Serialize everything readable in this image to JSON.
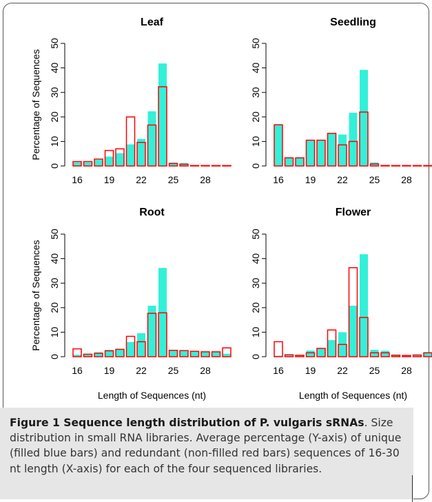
{
  "colors": {
    "unique_fill": "#33f0d8",
    "redundant_stroke": "#ff0000",
    "axis": "#000000"
  },
  "chart_data": [
    {
      "type": "bar",
      "title": "Leaf",
      "ylabel": "Percentage of Sequences",
      "xlabel": "",
      "x": [
        16,
        17,
        18,
        19,
        20,
        21,
        22,
        23,
        24,
        25,
        26,
        27,
        28,
        29,
        30
      ],
      "xtick_labels": [
        "16",
        "19",
        "22",
        "25",
        "28"
      ],
      "yticks": [
        "0",
        "10",
        "20",
        "30",
        "40",
        "50"
      ],
      "ylim": [
        0,
        50
      ],
      "series": [
        {
          "name": "unique",
          "values": [
            1.5,
            1.5,
            2.5,
            3.8,
            5.2,
            8.8,
            11.0,
            22.3,
            41.8,
            1.4,
            1.2,
            0,
            0,
            0,
            0
          ]
        },
        {
          "name": "redundant",
          "values": [
            1.8,
            1.8,
            2.8,
            6.3,
            7.0,
            20.0,
            9.6,
            16.7,
            32.3,
            1.0,
            0.7,
            0.1,
            0.1,
            0.1,
            0.1
          ]
        }
      ]
    },
    {
      "type": "bar",
      "title": "Seedling",
      "ylabel": "",
      "xlabel": "",
      "x": [
        16,
        17,
        18,
        19,
        20,
        21,
        22,
        23,
        24,
        25,
        26,
        27,
        28,
        29,
        30
      ],
      "xtick_labels": [
        "16",
        "19",
        "22",
        "25",
        "28"
      ],
      "yticks": [
        "0",
        "10",
        "20",
        "30",
        "40",
        "50"
      ],
      "ylim": [
        0,
        50
      ],
      "series": [
        {
          "name": "unique",
          "values": [
            16.8,
            3.3,
            3.3,
            10.3,
            10.3,
            13.3,
            12.8,
            21.7,
            39.2,
            1.4,
            0.2,
            0,
            0,
            0,
            0
          ]
        },
        {
          "name": "redundant",
          "values": [
            16.8,
            3.3,
            3.3,
            10.5,
            10.5,
            13.3,
            8.6,
            10.0,
            22.0,
            0.8,
            0.2,
            0.1,
            0.1,
            0.1,
            0.1
          ]
        }
      ]
    },
    {
      "type": "bar",
      "title": "Root",
      "ylabel": "Percentage of Sequences",
      "xlabel": "Length of Sequences (nt)",
      "x": [
        16,
        17,
        18,
        19,
        20,
        21,
        22,
        23,
        24,
        25,
        26,
        27,
        28,
        29,
        30
      ],
      "xtick_labels": [
        "16",
        "19",
        "22",
        "25",
        "28"
      ],
      "yticks": [
        "0",
        "10",
        "20",
        "30",
        "40",
        "50"
      ],
      "ylim": [
        0,
        50
      ],
      "series": [
        {
          "name": "unique",
          "values": [
            0.8,
            1.2,
            1.8,
            2.8,
            3.2,
            6.0,
            9.6,
            20.8,
            36.2,
            2.6,
            2.5,
            2.2,
            2.0,
            2.0,
            1.2
          ]
        },
        {
          "name": "redundant",
          "values": [
            3.2,
            1.0,
            1.4,
            2.4,
            3.0,
            8.3,
            6.1,
            17.7,
            17.9,
            2.6,
            2.5,
            2.2,
            2.0,
            2.0,
            3.6
          ]
        }
      ]
    },
    {
      "type": "bar",
      "title": "Flower",
      "ylabel": "",
      "xlabel": "Length of Sequences (nt)",
      "x": [
        16,
        17,
        18,
        19,
        20,
        21,
        22,
        23,
        24,
        25,
        26,
        27,
        28,
        29,
        30
      ],
      "xtick_labels": [
        "16",
        "19",
        "22",
        "25",
        "28"
      ],
      "yticks": [
        "0",
        "10",
        "20",
        "30",
        "40",
        "50"
      ],
      "ylim": [
        0,
        50
      ],
      "series": [
        {
          "name": "unique",
          "values": [
            0.4,
            0.6,
            0.6,
            2.5,
            3.2,
            6.8,
            10.0,
            20.8,
            41.8,
            2.8,
            2.4,
            0.9,
            0.6,
            0.7,
            1.8
          ]
        },
        {
          "name": "redundant",
          "values": [
            6.1,
            0.8,
            0.6,
            1.6,
            3.4,
            10.9,
            5.0,
            36.3,
            16.0,
            1.6,
            1.6,
            0.6,
            0.5,
            0.7,
            1.6
          ]
        }
      ]
    }
  ],
  "caption": {
    "title": "Figure 1 Sequence length distribution of P. vulgaris sRNAs",
    "text": ". Size distribution in small RNA libraries. Average percentage (Y-axis) of unique (filled blue bars) and redundant (non-filled red bars) sequences of 16-30 nt length (X-axis) for each of the four sequenced libraries."
  }
}
